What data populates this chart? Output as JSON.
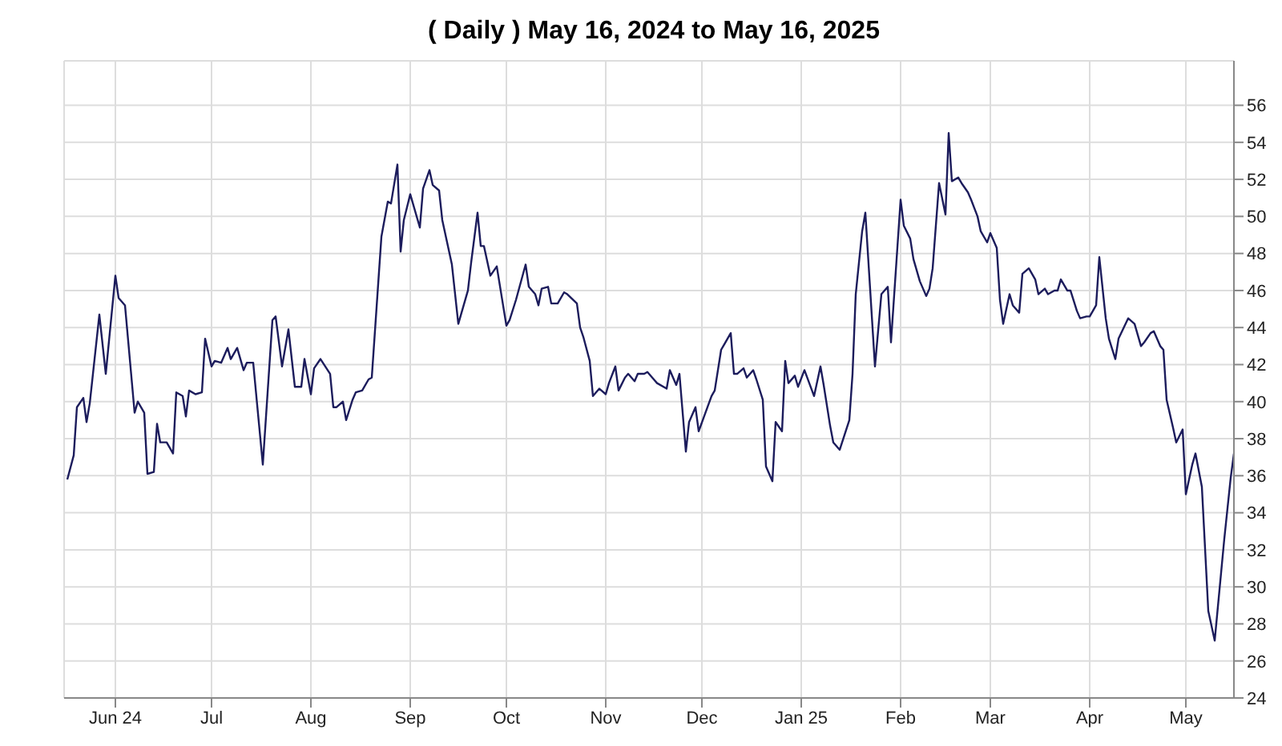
{
  "chart_data": {
    "type": "line",
    "title": "( Daily ) May 16, 2024 to May 16, 2025",
    "x": [
      "2024-05-17",
      "2024-05-19",
      "2024-05-20",
      "2024-05-22",
      "2024-05-23",
      "2024-05-24",
      "2024-05-27",
      "2024-05-29",
      "2024-06-01",
      "2024-06-02",
      "2024-06-04",
      "2024-06-07",
      "2024-06-08",
      "2024-06-10",
      "2024-06-11",
      "2024-06-13",
      "2024-06-14",
      "2024-06-15",
      "2024-06-17",
      "2024-06-19",
      "2024-06-20",
      "2024-06-22",
      "2024-06-23",
      "2024-06-24",
      "2024-06-26",
      "2024-06-28",
      "2024-06-29",
      "2024-07-01",
      "2024-07-02",
      "2024-07-04",
      "2024-07-06",
      "2024-07-07",
      "2024-07-09",
      "2024-07-11",
      "2024-07-12",
      "2024-07-14",
      "2024-07-17",
      "2024-07-20",
      "2024-07-21",
      "2024-07-23",
      "2024-07-25",
      "2024-07-27",
      "2024-07-29",
      "2024-07-30",
      "2024-08-01",
      "2024-08-02",
      "2024-08-04",
      "2024-08-07",
      "2024-08-08",
      "2024-08-09",
      "2024-08-11",
      "2024-08-12",
      "2024-08-14",
      "2024-08-15",
      "2024-08-17",
      "2024-08-19",
      "2024-08-20",
      "2024-08-23",
      "2024-08-25",
      "2024-08-26",
      "2024-08-28",
      "2024-08-29",
      "2024-08-30",
      "2024-09-01",
      "2024-09-04",
      "2024-09-05",
      "2024-09-07",
      "2024-09-08",
      "2024-09-10",
      "2024-09-11",
      "2024-09-14",
      "2024-09-16",
      "2024-09-19",
      "2024-09-20",
      "2024-09-22",
      "2024-09-23",
      "2024-09-24",
      "2024-09-26",
      "2024-09-28",
      "2024-10-01",
      "2024-10-02",
      "2024-10-04",
      "2024-10-07",
      "2024-10-08",
      "2024-10-10",
      "2024-10-11",
      "2024-10-12",
      "2024-10-14",
      "2024-10-15",
      "2024-10-17",
      "2024-10-19",
      "2024-10-20",
      "2024-10-23",
      "2024-10-24",
      "2024-10-25",
      "2024-10-27",
      "2024-10-28",
      "2024-10-30",
      "2024-11-01",
      "2024-11-02",
      "2024-11-04",
      "2024-11-05",
      "2024-11-07",
      "2024-11-08",
      "2024-11-10",
      "2024-11-11",
      "2024-11-13",
      "2024-11-14",
      "2024-11-16",
      "2024-11-17",
      "2024-11-20",
      "2024-11-21",
      "2024-11-23",
      "2024-11-24",
      "2024-11-26",
      "2024-11-27",
      "2024-11-29",
      "2024-11-30",
      "2024-12-04",
      "2024-12-05",
      "2024-12-07",
      "2024-12-08",
      "2024-12-10",
      "2024-12-11",
      "2024-12-12",
      "2024-12-14",
      "2024-12-15",
      "2024-12-17",
      "2024-12-18",
      "2024-12-20",
      "2024-12-21",
      "2024-12-23",
      "2024-12-24",
      "2024-12-26",
      "2024-12-27",
      "2024-12-28",
      "2024-12-30",
      "2024-12-31",
      "2025-01-02",
      "2025-01-05",
      "2025-01-07",
      "2025-01-08",
      "2025-01-10",
      "2025-01-11",
      "2025-01-13",
      "2025-01-16",
      "2025-01-17",
      "2025-01-18",
      "2025-01-20",
      "2025-01-21",
      "2025-01-24",
      "2025-01-26",
      "2025-01-28",
      "2025-01-29",
      "2025-02-01",
      "2025-02-02",
      "2025-02-04",
      "2025-02-05",
      "2025-02-07",
      "2025-02-09",
      "2025-02-10",
      "2025-02-11",
      "2025-02-13",
      "2025-02-15",
      "2025-02-16",
      "2025-02-17",
      "2025-02-19",
      "2025-02-20",
      "2025-02-22",
      "2025-02-23",
      "2025-02-25",
      "2025-02-26",
      "2025-02-28",
      "2025-03-01",
      "2025-03-03",
      "2025-03-04",
      "2025-03-05",
      "2025-03-07",
      "2025-03-08",
      "2025-03-10",
      "2025-03-11",
      "2025-03-13",
      "2025-03-15",
      "2025-03-16",
      "2025-03-18",
      "2025-03-19",
      "2025-03-21",
      "2025-03-22",
      "2025-03-23",
      "2025-03-25",
      "2025-03-26",
      "2025-03-28",
      "2025-03-29",
      "2025-03-31",
      "2025-04-01",
      "2025-04-03",
      "2025-04-04",
      "2025-04-06",
      "2025-04-07",
      "2025-04-09",
      "2025-04-10",
      "2025-04-13",
      "2025-04-15",
      "2025-04-17",
      "2025-04-18",
      "2025-04-20",
      "2025-04-21",
      "2025-04-23",
      "2025-04-24",
      "2025-04-25",
      "2025-04-27",
      "2025-04-28",
      "2025-04-30",
      "2025-05-01",
      "2025-05-03",
      "2025-05-04",
      "2025-05-06",
      "2025-05-08",
      "2025-05-10",
      "2025-05-13",
      "2025-05-15",
      "2025-05-16"
    ],
    "series": [
      {
        "color": "#1c1c5c",
        "values": [
          35.8,
          37.1,
          39.7,
          40.2,
          38.9,
          39.9,
          44.7,
          41.5,
          46.8,
          45.6,
          45.2,
          39.4,
          40.0,
          39.4,
          36.1,
          36.2,
          38.8,
          37.8,
          37.8,
          37.2,
          40.5,
          40.3,
          39.2,
          40.6,
          40.4,
          40.5,
          43.4,
          41.9,
          42.2,
          42.1,
          42.9,
          42.3,
          42.9,
          41.7,
          42.1,
          42.1,
          36.6,
          44.4,
          44.6,
          41.9,
          43.9,
          40.8,
          40.8,
          42.3,
          40.4,
          41.8,
          42.3,
          41.5,
          39.7,
          39.7,
          40.0,
          39.0,
          40.1,
          40.5,
          40.6,
          41.2,
          41.3,
          48.9,
          50.8,
          50.7,
          52.8,
          48.1,
          49.8,
          51.2,
          49.4,
          51.5,
          52.5,
          51.7,
          51.4,
          49.8,
          47.4,
          44.2,
          46.0,
          47.5,
          50.2,
          48.4,
          48.4,
          46.8,
          47.3,
          44.1,
          44.4,
          45.5,
          47.4,
          46.2,
          45.8,
          45.2,
          46.1,
          46.2,
          45.3,
          45.3,
          45.9,
          45.8,
          45.3,
          44.0,
          43.5,
          42.2,
          40.3,
          40.7,
          40.4,
          41.0,
          41.9,
          40.6,
          41.3,
          41.5,
          41.1,
          41.5,
          41.5,
          41.6,
          41.2,
          41.0,
          40.7,
          41.7,
          40.9,
          41.5,
          37.3,
          38.9,
          39.7,
          38.4,
          40.3,
          40.6,
          42.8,
          43.1,
          43.7,
          41.5,
          41.5,
          41.8,
          41.3,
          41.7,
          41.2,
          40.1,
          36.5,
          35.7,
          38.9,
          38.4,
          42.2,
          41.0,
          41.4,
          40.8,
          41.7,
          40.3,
          41.9,
          40.9,
          38.7,
          37.8,
          37.4,
          39.0,
          41.5,
          45.8,
          49.2,
          50.2,
          41.9,
          45.8,
          46.2,
          43.2,
          50.9,
          49.5,
          48.8,
          47.7,
          46.5,
          45.7,
          46.1,
          47.2,
          51.8,
          50.1,
          54.5,
          51.9,
          52.1,
          51.8,
          51.3,
          50.9,
          50.0,
          49.2,
          48.6,
          49.1,
          48.3,
          45.5,
          44.2,
          45.8,
          45.2,
          44.8,
          46.9,
          47.2,
          46.6,
          45.8,
          46.1,
          45.8,
          46.0,
          46.0,
          46.6,
          46.0,
          46.0,
          44.9,
          44.5,
          44.6,
          44.6,
          45.2,
          47.8,
          44.5,
          43.4,
          42.3,
          43.4,
          44.5,
          44.2,
          43.0,
          43.2,
          43.7,
          43.8,
          43.0,
          42.8,
          40.1,
          38.6,
          37.8,
          38.5,
          35.0,
          36.6,
          37.2,
          35.4,
          28.7,
          27.1,
          32.6,
          35.9,
          37.2
        ]
      }
    ],
    "xlim": [
      "2024-05-16",
      "2025-05-16"
    ],
    "xticks": [
      {
        "value": "2024-06-01",
        "label": "Jun 24"
      },
      {
        "value": "2024-07-01",
        "label": "Jul"
      },
      {
        "value": "2024-08-01",
        "label": "Aug"
      },
      {
        "value": "2024-09-01",
        "label": "Sep"
      },
      {
        "value": "2024-10-01",
        "label": "Oct"
      },
      {
        "value": "2024-11-01",
        "label": "Nov"
      },
      {
        "value": "2024-12-01",
        "label": "Dec"
      },
      {
        "value": "2025-01-01",
        "label": "Jan 25"
      },
      {
        "value": "2025-02-01",
        "label": "Feb"
      },
      {
        "value": "2025-03-01",
        "label": "Mar"
      },
      {
        "value": "2025-04-01",
        "label": "Apr"
      },
      {
        "value": "2025-05-01",
        "label": "May"
      }
    ],
    "ylim": [
      24,
      58.4
    ],
    "yticks": [
      24,
      26,
      28,
      30,
      32,
      34,
      36,
      38,
      40,
      42,
      44,
      46,
      48,
      50,
      52,
      54,
      56
    ],
    "grid": true,
    "legend": false,
    "marker": "none",
    "line_style": "solid"
  }
}
